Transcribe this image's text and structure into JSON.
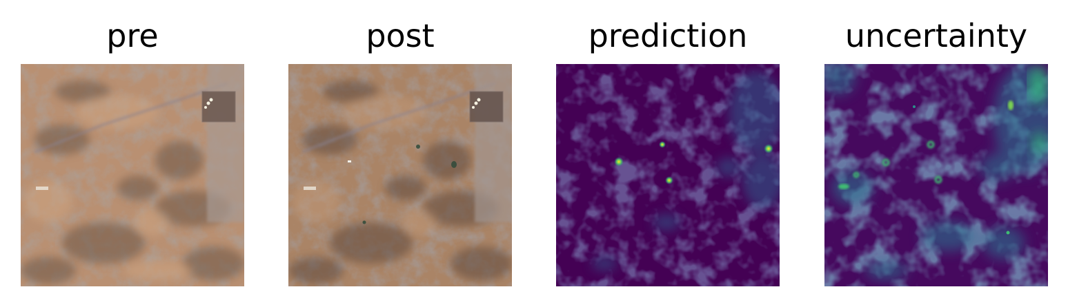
{
  "figure": {
    "panels": [
      {
        "title": "pre",
        "content": "satellite image before event"
      },
      {
        "title": "post",
        "content": "satellite image after event"
      },
      {
        "title": "prediction",
        "content": "heatmap"
      },
      {
        "title": "uncertainty",
        "content": "heatmap"
      }
    ],
    "colors": {
      "background": "#ffffff",
      "terrain_light": "#b98e6c",
      "terrain_dark": "#6e5545",
      "viridis_low": "#440154",
      "viridis_mid": "#31688e",
      "viridis_high": "#35b779",
      "viridis_peak": "#fde725"
    }
  }
}
